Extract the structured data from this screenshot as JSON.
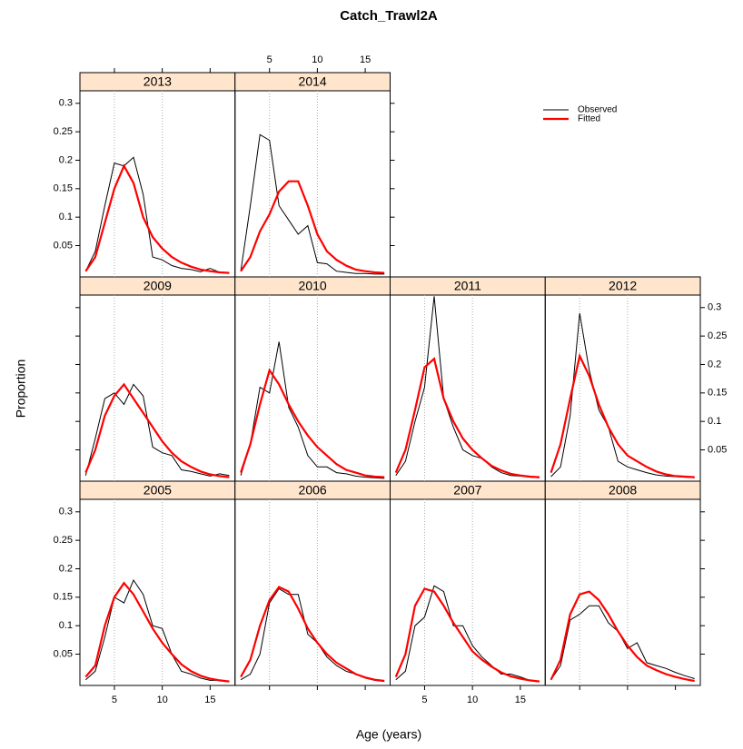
{
  "chart_data": {
    "type": "line",
    "title": "Catch_Trawl2A",
    "xlabel": "Age (years)",
    "ylabel": "Proportion",
    "x": [
      2,
      3,
      4,
      5,
      6,
      7,
      8,
      9,
      10,
      11,
      12,
      13,
      14,
      15,
      16,
      17
    ],
    "xlim": [
      1.4,
      17.6
    ],
    "xticks": [
      5,
      10,
      15
    ],
    "ylim": [
      -0.005,
      0.322
    ],
    "yticks": [
      0.05,
      0.1,
      0.15,
      0.2,
      0.25,
      0.3
    ],
    "reference_lines": [
      5,
      10
    ],
    "series": [
      {
        "name": "Observed",
        "color": "#000000"
      },
      {
        "name": "Fitted",
        "color": "#ff0000"
      }
    ],
    "panels": [
      {
        "title": "2005",
        "values": [
          [
            0.005,
            0.02,
            0.08,
            0.15,
            0.14,
            0.18,
            0.155,
            0.1,
            0.095,
            0.05,
            0.02,
            0.015,
            0.008,
            0.004,
            0.004,
            0.002
          ],
          [
            0.01,
            0.03,
            0.1,
            0.15,
            0.175,
            0.155,
            0.125,
            0.095,
            0.07,
            0.05,
            0.032,
            0.02,
            0.012,
            0.007,
            0.004,
            0.002
          ]
        ]
      },
      {
        "title": "2006",
        "values": [
          [
            0.005,
            0.015,
            0.05,
            0.14,
            0.165,
            0.155,
            0.155,
            0.085,
            0.07,
            0.045,
            0.03,
            0.02,
            0.015,
            0.008,
            0.004,
            0.002
          ],
          [
            0.01,
            0.04,
            0.1,
            0.145,
            0.168,
            0.16,
            0.13,
            0.095,
            0.07,
            0.05,
            0.035,
            0.025,
            0.015,
            0.009,
            0.005,
            0.003
          ]
        ]
      },
      {
        "title": "2007",
        "values": [
          [
            0.005,
            0.02,
            0.1,
            0.115,
            0.17,
            0.16,
            0.1,
            0.1,
            0.065,
            0.045,
            0.03,
            0.015,
            0.015,
            0.01,
            0.004,
            0.002
          ],
          [
            0.01,
            0.05,
            0.135,
            0.165,
            0.16,
            0.135,
            0.105,
            0.08,
            0.055,
            0.04,
            0.028,
            0.018,
            0.011,
            0.007,
            0.004,
            0.002
          ]
        ]
      },
      {
        "title": "2008",
        "values": [
          [
            0.005,
            0.03,
            0.11,
            0.12,
            0.135,
            0.135,
            0.105,
            0.09,
            0.06,
            0.07,
            0.035,
            0.03,
            0.025,
            0.018,
            0.012,
            0.007
          ],
          [
            0.005,
            0.04,
            0.12,
            0.155,
            0.16,
            0.145,
            0.12,
            0.09,
            0.065,
            0.045,
            0.03,
            0.022,
            0.015,
            0.01,
            0.006,
            0.003
          ]
        ]
      },
      {
        "title": "2009",
        "values": [
          [
            0.005,
            0.07,
            0.14,
            0.15,
            0.13,
            0.165,
            0.145,
            0.055,
            0.045,
            0.04,
            0.015,
            0.012,
            0.008,
            0.004,
            0.008,
            0.005
          ],
          [
            0.01,
            0.05,
            0.11,
            0.145,
            0.165,
            0.14,
            0.115,
            0.09,
            0.065,
            0.045,
            0.03,
            0.02,
            0.012,
            0.007,
            0.004,
            0.002
          ]
        ]
      },
      {
        "title": "2010",
        "values": [
          [
            0.005,
            0.06,
            0.16,
            0.15,
            0.24,
            0.125,
            0.09,
            0.04,
            0.02,
            0.02,
            0.01,
            0.008,
            0.004,
            0.002,
            0.001,
            0
          ],
          [
            0.01,
            0.06,
            0.13,
            0.19,
            0.165,
            0.13,
            0.1,
            0.075,
            0.055,
            0.04,
            0.025,
            0.015,
            0.01,
            0.005,
            0.003,
            0.002
          ]
        ]
      },
      {
        "title": "2011",
        "values": [
          [
            0.005,
            0.03,
            0.1,
            0.16,
            0.32,
            0.14,
            0.09,
            0.05,
            0.04,
            0.035,
            0.02,
            0.01,
            0.005,
            0.004,
            0.002,
            0.001
          ],
          [
            0.01,
            0.05,
            0.12,
            0.195,
            0.21,
            0.14,
            0.1,
            0.07,
            0.05,
            0.035,
            0.022,
            0.014,
            0.008,
            0.005,
            0.003,
            0.002
          ]
        ]
      },
      {
        "title": "2012",
        "values": [
          [
            0.003,
            0.02,
            0.11,
            0.29,
            0.19,
            0.12,
            0.09,
            0.03,
            0.02,
            0.015,
            0.01,
            0.006,
            0.004,
            0.003,
            0.002,
            0.001
          ],
          [
            0.01,
            0.06,
            0.14,
            0.215,
            0.18,
            0.13,
            0.09,
            0.06,
            0.04,
            0.03,
            0.02,
            0.012,
            0.007,
            0.004,
            0.003,
            0.002
          ]
        ]
      },
      {
        "title": "2013",
        "values": [
          [
            0.005,
            0.04,
            0.12,
            0.195,
            0.19,
            0.205,
            0.14,
            0.03,
            0.025,
            0.015,
            0.01,
            0.008,
            0.004,
            0.01,
            0.003,
            0.002
          ],
          [
            0.005,
            0.03,
            0.09,
            0.15,
            0.19,
            0.16,
            0.1,
            0.065,
            0.045,
            0.03,
            0.02,
            0.013,
            0.008,
            0.005,
            0.003,
            0.002
          ]
        ]
      },
      {
        "title": "2014",
        "values": [
          [
            0.005,
            0.12,
            0.245,
            0.235,
            0.12,
            0.095,
            0.07,
            0.085,
            0.02,
            0.018,
            0.005,
            0.003,
            0.001,
            0.001,
            0,
            0
          ],
          [
            0.005,
            0.03,
            0.075,
            0.105,
            0.145,
            0.163,
            0.163,
            0.12,
            0.07,
            0.04,
            0.025,
            0.015,
            0.008,
            0.005,
            0.003,
            0.002
          ]
        ]
      }
    ]
  }
}
